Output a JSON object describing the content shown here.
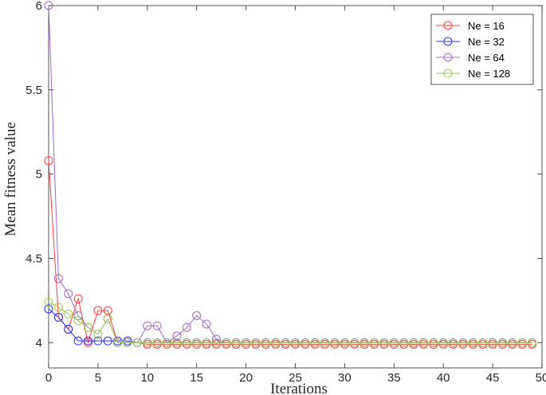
{
  "chart_data": {
    "type": "line",
    "title": "",
    "xlabel": "Iterations",
    "ylabel": "Mean fitness value",
    "xlim": [
      0,
      50
    ],
    "ylim": [
      3.85,
      6
    ],
    "xticks": [
      0,
      5,
      10,
      15,
      20,
      25,
      30,
      35,
      40,
      45,
      50
    ],
    "yticks": [
      4,
      4.5,
      5,
      5.5,
      6
    ],
    "ytick_labels": [
      "4",
      "4.5",
      "5",
      "5.5",
      "6"
    ],
    "grid": false,
    "legend": "top-right",
    "marker": "open-circle",
    "x": [
      0,
      1,
      2,
      3,
      4,
      5,
      6,
      7,
      8,
      9,
      10,
      11,
      12,
      13,
      14,
      15,
      16,
      17,
      18,
      19,
      20,
      21,
      22,
      23,
      24,
      25,
      26,
      27,
      28,
      29,
      30,
      31,
      32,
      33,
      34,
      35,
      36,
      37,
      38,
      39,
      40,
      41,
      42,
      43,
      44,
      45,
      46,
      47,
      48,
      49
    ],
    "series": [
      {
        "name": "Ne = 16",
        "color": "#ff3b3b",
        "values": [
          5.08,
          4.15,
          4.08,
          4.26,
          4.0,
          4.19,
          4.19,
          4.0,
          4.0,
          4.0,
          3.99,
          3.99,
          3.99,
          3.99,
          3.99,
          3.99,
          3.99,
          3.99,
          3.99,
          3.99,
          3.99,
          3.99,
          3.99,
          3.99,
          3.99,
          3.99,
          3.99,
          3.99,
          3.99,
          3.99,
          3.99,
          3.99,
          3.99,
          3.99,
          3.99,
          3.99,
          3.99,
          3.99,
          3.99,
          3.99,
          3.99,
          3.99,
          3.99,
          3.99,
          3.99,
          3.99,
          3.99,
          3.99,
          3.99,
          3.99
        ]
      },
      {
        "name": "Ne = 32",
        "color": "#2b2bff",
        "values": [
          4.2,
          4.15,
          4.08,
          4.01,
          4.01,
          4.01,
          4.01,
          4.01,
          4.01,
          4.0,
          4.0,
          4.0,
          4.0,
          4.0,
          4.0,
          4.0,
          4.0,
          4.0,
          4.0,
          4.0,
          4.0,
          4.0,
          4.0,
          4.0,
          4.0,
          4.0,
          4.0,
          4.0,
          4.0,
          4.0,
          4.0,
          4.0,
          4.0,
          4.0,
          4.0,
          4.0,
          4.0,
          4.0,
          4.0,
          4.0,
          4.0,
          4.0,
          4.0,
          4.0,
          4.0,
          4.0,
          4.0,
          4.0,
          4.0,
          4.0
        ]
      },
      {
        "name": "Ne = 64",
        "color": "#a066cc",
        "values": [
          6.0,
          4.38,
          4.29,
          4.16,
          4.09,
          4.05,
          4.14,
          4.0,
          4.0,
          4.0,
          4.1,
          4.1,
          4.0,
          4.04,
          4.09,
          4.16,
          4.11,
          4.02,
          4.0,
          4.0,
          4.0,
          4.0,
          4.0,
          4.0,
          4.0,
          4.0,
          4.0,
          4.0,
          4.0,
          4.0,
          4.0,
          4.0,
          4.0,
          4.0,
          4.0,
          4.0,
          4.0,
          4.0,
          4.0,
          4.0,
          4.0,
          4.0,
          4.0,
          4.0,
          4.0,
          4.0,
          4.0,
          4.0,
          4.0,
          4.0
        ]
      },
      {
        "name": "Ne = 128",
        "color": "#99cc55",
        "values": [
          4.24,
          4.21,
          4.17,
          4.13,
          4.09,
          4.05,
          4.14,
          4.0,
          4.0,
          4.0,
          4.0,
          4.0,
          4.0,
          4.0,
          4.0,
          4.0,
          4.0,
          4.0,
          4.0,
          4.0,
          4.0,
          4.0,
          4.0,
          4.0,
          4.0,
          4.0,
          4.0,
          4.0,
          4.0,
          4.0,
          4.0,
          4.0,
          4.0,
          4.0,
          4.0,
          4.0,
          4.0,
          4.0,
          4.0,
          4.0,
          4.0,
          4.0,
          4.0,
          4.0,
          4.0,
          4.0,
          4.0,
          4.0,
          4.0,
          4.0
        ]
      }
    ]
  }
}
